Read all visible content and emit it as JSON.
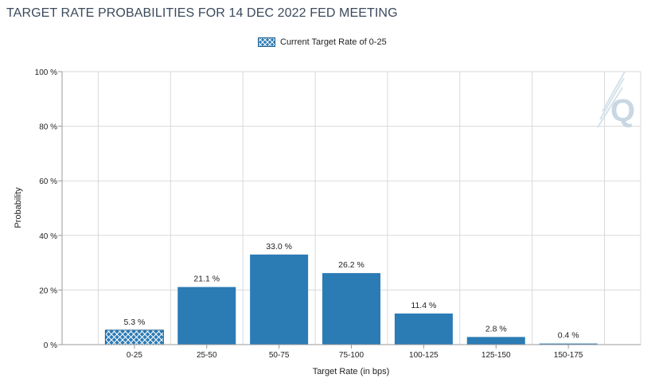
{
  "page": {
    "title": "TARGET RATE PROBABILITIES FOR 14 DEC 2022 FED MEETING",
    "legend_label": "Current Target Rate of 0-25",
    "watermark_letter": "Q",
    "watermark_icon": "cme-fedwatch-q-logo-icon"
  },
  "colors": {
    "bar": "#2b7bb5",
    "bar_border": "#1f5f8e",
    "hatch_line": "#ffffff",
    "grid": "#d9d9d9",
    "axis": "#999999",
    "title": "#3b4a5c",
    "watermark": "#c9d7e2"
  },
  "chart_data": {
    "type": "bar",
    "title": "TARGET RATE PROBABILITIES FOR 14 DEC 2022 FED MEETING",
    "xlabel": "Target Rate (in bps)",
    "ylabel": "Probability",
    "categories": [
      "0-25",
      "25-50",
      "50-75",
      "75-100",
      "100-125",
      "125-150",
      "150-175"
    ],
    "values": [
      5.3,
      21.1,
      33.0,
      26.2,
      11.4,
      2.8,
      0.4
    ],
    "data_labels": [
      "5.3 %",
      "21.1 %",
      "33.0 %",
      "26.2 %",
      "11.4 %",
      "2.8 %",
      "0.4 %"
    ],
    "current_index": 0,
    "ylim": [
      0,
      100
    ],
    "yticks": [
      0,
      20,
      40,
      60,
      80,
      100
    ],
    "ytick_labels": [
      "0 %",
      "20 %",
      "40 %",
      "60 %",
      "80 %",
      "100 %"
    ],
    "grid": true,
    "legend_position": "top-center"
  }
}
